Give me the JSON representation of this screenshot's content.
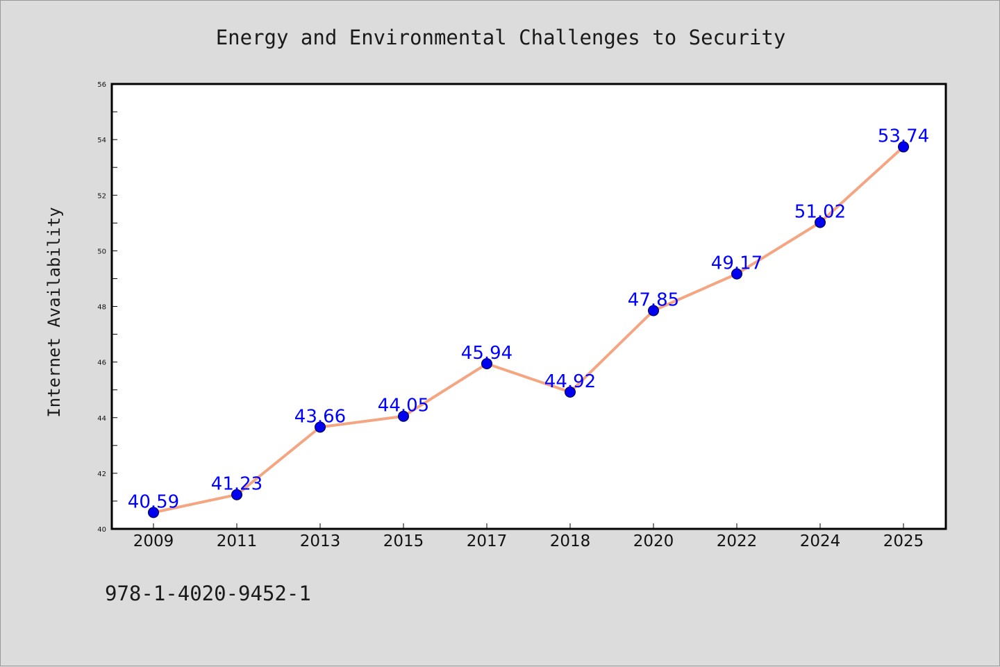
{
  "chart_data": {
    "type": "line",
    "title": "Energy and Environmental Challenges to Security",
    "xlabel": "",
    "ylabel": "Internet Availability",
    "categories": [
      "2009",
      "2011",
      "2013",
      "2015",
      "2017",
      "2018",
      "2020",
      "2022",
      "2024",
      "2025"
    ],
    "values": [
      40.59,
      41.23,
      43.66,
      44.05,
      45.94,
      44.92,
      47.85,
      49.17,
      51.02,
      53.74
    ],
    "data_labels": [
      "40.59",
      "41.23",
      "43.66",
      "44.05",
      "45.94",
      "44.92",
      "47.85",
      "49.17",
      "51.02",
      "53.74"
    ],
    "ylim": [
      40,
      56
    ],
    "yticks": [
      "40",
      "42",
      "44",
      "46",
      "48",
      "50",
      "52",
      "54",
      "56"
    ],
    "grid": false,
    "legend": "none",
    "line_color": "#f4a582",
    "marker_color": "#0000ee",
    "label_color": "#0000ff"
  },
  "footer": {
    "text": "978-1-4020-9452-1"
  }
}
